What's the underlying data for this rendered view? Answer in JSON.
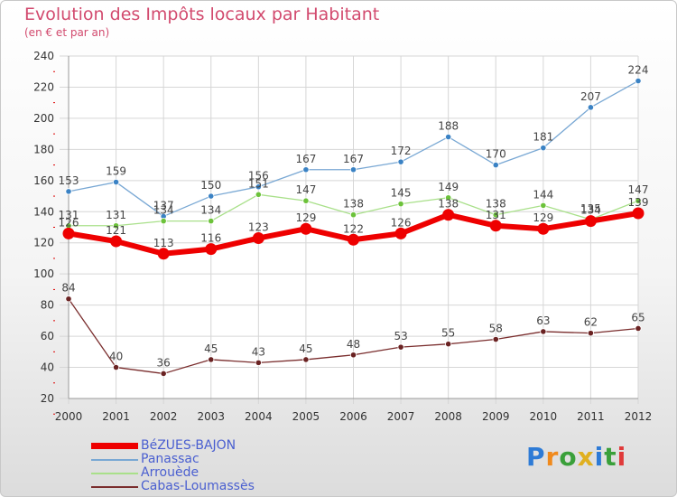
{
  "header": {
    "title": "Evolution des Impôts locaux par Habitant",
    "subtitle": "(en € et par an)"
  },
  "brand": {
    "letters": [
      "P",
      "r",
      "o",
      "x",
      "i",
      "t",
      "i"
    ],
    "colors": [
      "#2e7bd6",
      "#f08a1c",
      "#3aa03a",
      "#e0b020",
      "#2e7bd6",
      "#3aa03a",
      "#e03a3a"
    ]
  },
  "chart_data": {
    "type": "line",
    "x": [
      "2000",
      "2001",
      "2002",
      "2003",
      "2004",
      "2005",
      "2006",
      "2007",
      "2008",
      "2009",
      "2010",
      "2011",
      "2012"
    ],
    "ylim": [
      20,
      240
    ],
    "yticks": [
      20,
      40,
      60,
      80,
      100,
      120,
      140,
      160,
      180,
      200,
      220,
      240
    ],
    "grid": true,
    "legend_position": "bottom-left",
    "series": [
      {
        "name": "BéZUES-BAJON",
        "color": "#ee0000",
        "marker": "#ee0000",
        "width": 6,
        "values": [
          126,
          121,
          113,
          116,
          123,
          129,
          122,
          126,
          138,
          131,
          129,
          134,
          139
        ]
      },
      {
        "name": "Panassac",
        "color": "#79a8d4",
        "marker": "#3a82c4",
        "width": 1.3,
        "values": [
          153,
          159,
          137,
          150,
          156,
          167,
          167,
          172,
          188,
          170,
          181,
          207,
          224
        ]
      },
      {
        "name": "Arrouède",
        "color": "#a9e08a",
        "marker": "#6cc23a",
        "width": 1.3,
        "values": [
          131,
          131,
          134,
          134,
          151,
          147,
          138,
          145,
          149,
          138,
          144,
          135,
          147
        ]
      },
      {
        "name": "Cabas-Loumassès",
        "color": "#7a2d2d",
        "marker": "#6a2222",
        "width": 1.3,
        "values": [
          84,
          40,
          36,
          45,
          43,
          45,
          48,
          53,
          55,
          58,
          63,
          62,
          65
        ]
      }
    ]
  }
}
